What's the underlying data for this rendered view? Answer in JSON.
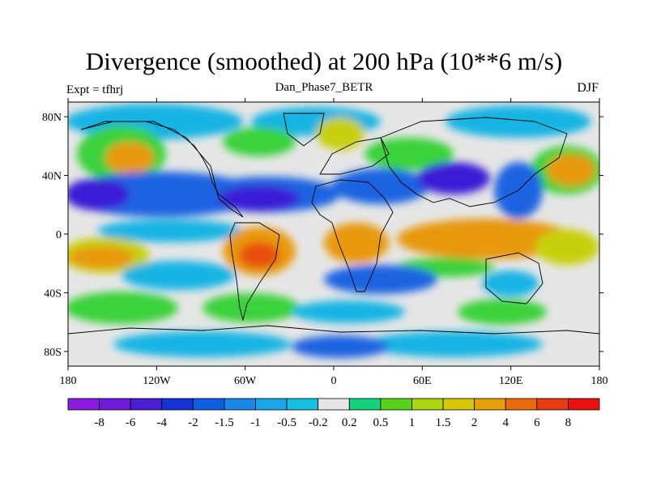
{
  "title": "Divergence (smoothed) at 200 hPa (10**6 m/s)",
  "left_label": "Expt = tfhrj",
  "center_label": "Dan_Phase7_BETR",
  "right_label": "DJF",
  "lat_labels": [
    "80N",
    "40N",
    "0",
    "40S",
    "80S"
  ],
  "lat_values": [
    80,
    40,
    0,
    -40,
    -80
  ],
  "lon_labels": [
    "180",
    "120W",
    "60W",
    "0",
    "60E",
    "120E",
    "180"
  ],
  "lon_values": [
    -180,
    -120,
    -60,
    0,
    60,
    120,
    180
  ],
  "colorbar": {
    "labels": [
      "-8",
      "-6",
      "-4",
      "-2",
      "-1.5",
      "-1",
      "-0.5",
      "-0.2",
      "0.2",
      "0.5",
      "1",
      "1.5",
      "2",
      "4",
      "6",
      "8"
    ],
    "colors": [
      "#8a1ce0",
      "#6e1ad8",
      "#4a1fd2",
      "#1532d4",
      "#0d5fe0",
      "#1a86e8",
      "#1aa6e6",
      "#14c0e0",
      "#e6e6e6",
      "#12d27e",
      "#58d21a",
      "#a8d610",
      "#d8c80a",
      "#e8a00a",
      "#ea6a0c",
      "#e83a10",
      "#e81010"
    ]
  },
  "legend_palette": {
    "deep_neg": "#3a1cd6",
    "neg": "#1a64e2",
    "weak_neg": "#16b4e4",
    "neutral": "#e6e6e6",
    "weak_pos": "#3ad23a",
    "pos": "#c8d010",
    "strong_pos": "#e8980a",
    "very_pos": "#e8500c"
  }
}
